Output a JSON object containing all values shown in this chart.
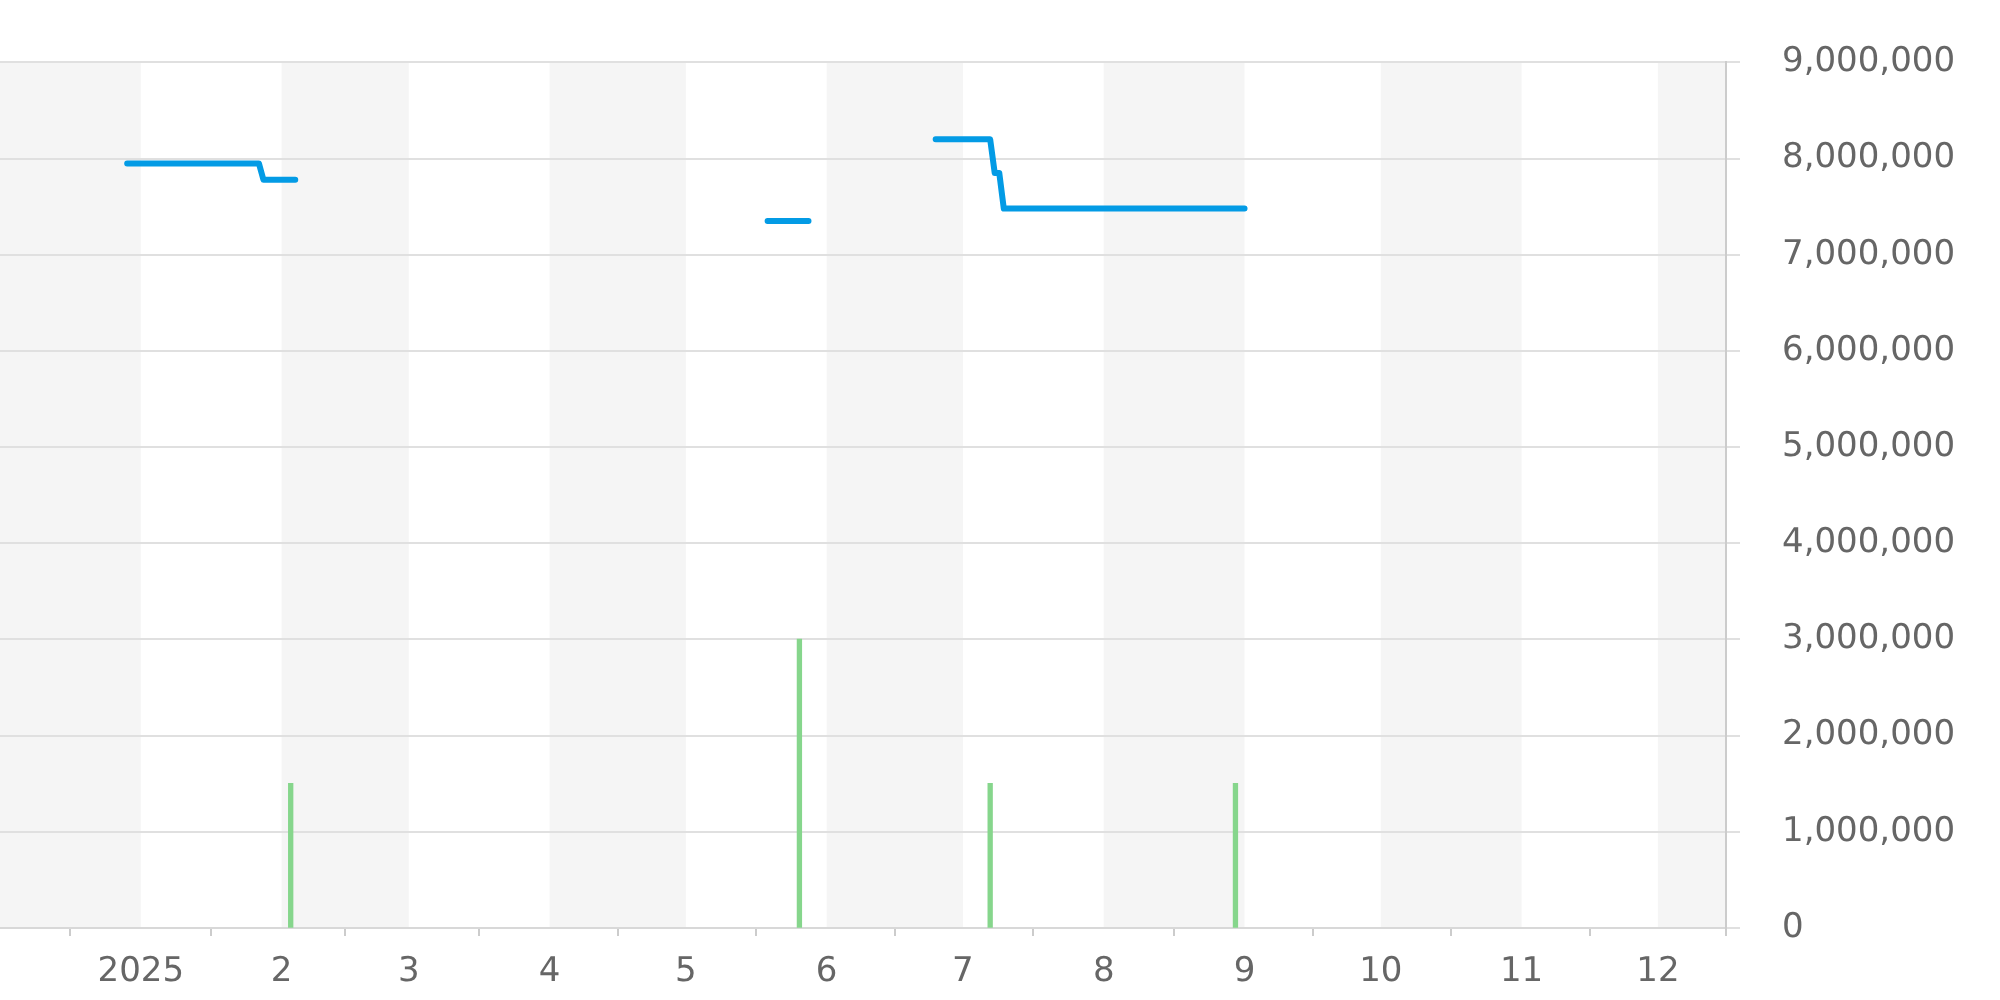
{
  "chart_data": {
    "type": "line",
    "series": [
      {
        "color": "#039be5",
        "x": [
          "2024-12-29",
          "2025-01-27",
          "2025-01-28",
          "2025-02-04",
          "2025-02-05",
          "2025-05-19",
          "2025-05-28",
          "2025-05-29",
          "2025-06-25",
          "2025-07-07",
          "2025-07-08",
          "2025-07-09",
          "2025-07-10",
          "2025-09-01"
        ],
        "values": [
          7950000,
          7950000,
          7780000,
          7780000,
          null,
          7350000,
          7350000,
          null,
          8200000,
          8200000,
          7850000,
          7850000,
          7480000,
          7480000
        ]
      },
      {
        "type": "bar",
        "color": "#86d68c",
        "x": [
          "2025-02-03",
          "2025-05-26",
          "2025-07-07",
          "2025-08-30"
        ],
        "values": [
          1500000,
          3000000,
          1500000,
          1500000
        ]
      }
    ],
    "xlim": [
      "2024-12-01",
      "2025-12-16"
    ],
    "xticks": [
      {
        "value": "2025-01-01",
        "label": "2025"
      },
      {
        "value": "2025-02-01",
        "label": "2"
      },
      {
        "value": "2025-03-01",
        "label": "3"
      },
      {
        "value": "2025-04-01",
        "label": "4"
      },
      {
        "value": "2025-05-01",
        "label": "5"
      },
      {
        "value": "2025-06-01",
        "label": "6"
      },
      {
        "value": "2025-07-01",
        "label": "7"
      },
      {
        "value": "2025-08-01",
        "label": "8"
      },
      {
        "value": "2025-09-01",
        "label": "9"
      },
      {
        "value": "2025-10-01",
        "label": "10"
      },
      {
        "value": "2025-11-01",
        "label": "11"
      },
      {
        "value": "2025-12-01",
        "label": "12"
      }
    ],
    "ylim": [
      0,
      9000000
    ],
    "yticks": [
      0,
      {
        "value": 1000000,
        "label": "1,000,000"
      },
      {
        "value": 2000000,
        "label": "2,000,000"
      },
      {
        "value": 3000000,
        "label": "3,000,000"
      },
      {
        "value": 4000000,
        "label": "4,000,000"
      },
      {
        "value": 5000000,
        "label": "5,000,000"
      },
      {
        "value": 6000000,
        "label": "6,000,000"
      },
      {
        "value": 7000000,
        "label": "7,000,000"
      },
      {
        "value": 8000000,
        "label": "8,000,000"
      },
      {
        "value": 9000000,
        "label": "9,000,000"
      }
    ],
    "bands": [
      {
        "axis": "x",
        "from": "2024-12-01",
        "to": "2025-01-01",
        "color": "#f5f5f5"
      },
      {
        "axis": "x",
        "from": "2025-02-01",
        "to": "2025-03-01",
        "color": "#f5f5f5"
      },
      {
        "axis": "x",
        "from": "2025-04-01",
        "to": "2025-05-01",
        "color": "#f5f5f5"
      },
      {
        "axis": "x",
        "from": "2025-06-01",
        "to": "2025-07-01",
        "color": "#f5f5f5"
      },
      {
        "axis": "x",
        "from": "2025-08-01",
        "to": "2025-09-01",
        "color": "#f5f5f5"
      },
      {
        "axis": "x",
        "from": "2025-10-01",
        "to": "2025-11-01",
        "color": "#f5f5f5"
      },
      {
        "axis": "x",
        "from": "2025-12-01",
        "to": "2025-12-16",
        "color": "#f5f5f5"
      }
    ],
    "grid": "y",
    "legend": false,
    "marker": "none"
  }
}
